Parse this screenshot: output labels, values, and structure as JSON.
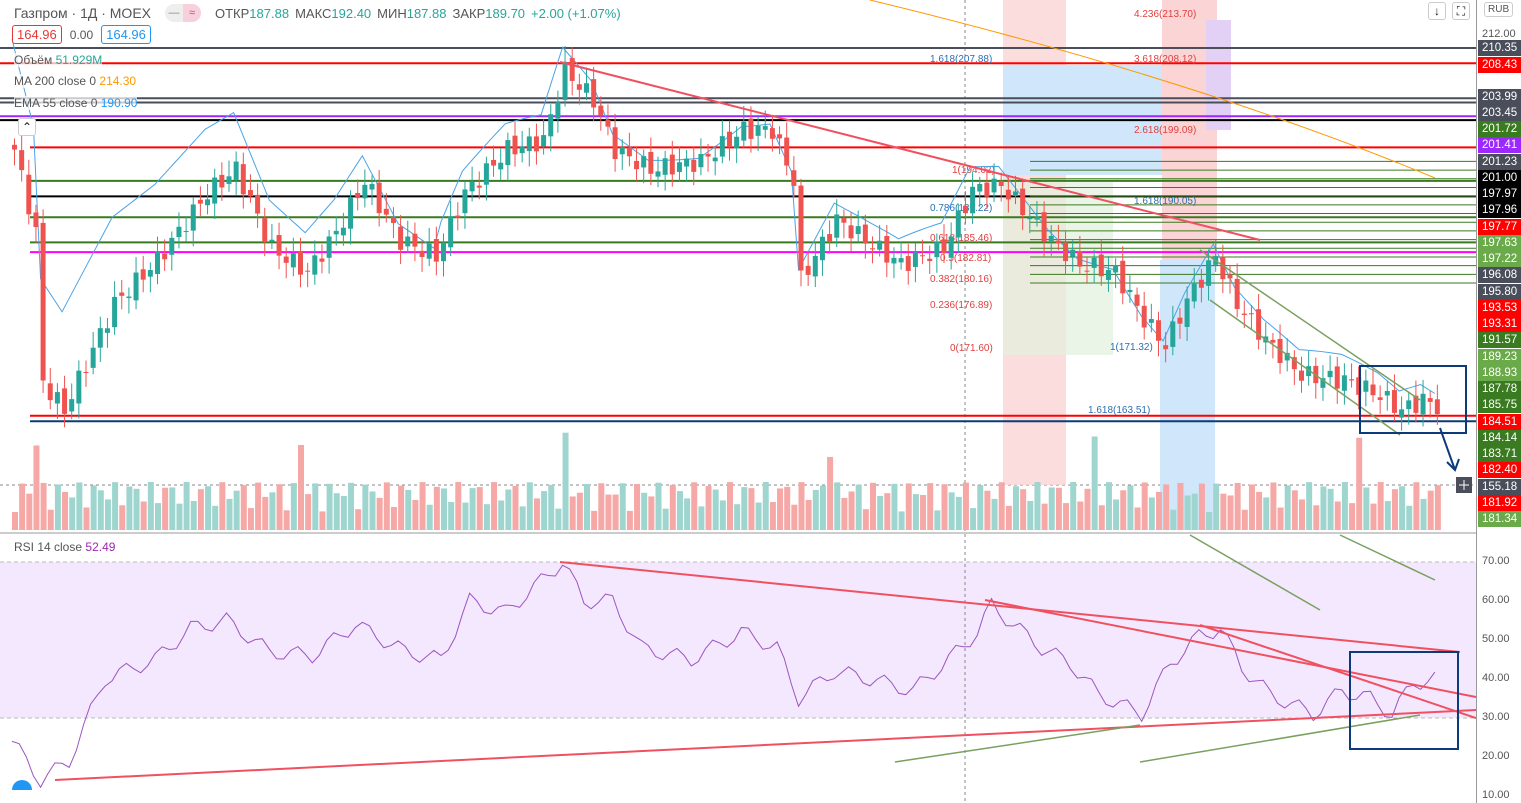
{
  "header": {
    "title": "Газпром · 1Д · MOEX",
    "open_label": "ОТКР",
    "open": "187.88",
    "high_label": "МАКС",
    "high": "192.40",
    "low_label": "МИН",
    "low": "187.88",
    "close_label": "ЗАКР",
    "close": "189.70",
    "change": "+2.00 (+1.07%)",
    "sell": "164.96",
    "spread": "0.00",
    "buy": "164.96"
  },
  "indicators": {
    "volume_label": "Объём",
    "volume": "51.929M",
    "ma_label": "MA 200 close 0",
    "ma": "214.30",
    "ema_label": "EMA 55 close 0",
    "ema": "190.90",
    "rsi_label": "RSI 14 close",
    "rsi": "52.49"
  },
  "axis": {
    "currency": "RUB",
    "top": "212.00",
    "labels": [
      {
        "v": "210.35",
        "c": "#4a4e5a"
      },
      {
        "v": "208.43",
        "c": "#ff0000"
      },
      {
        "v": "203.99",
        "c": "#4a4e5a"
      },
      {
        "v": "203.45",
        "c": "#4a4e5a"
      },
      {
        "v": "201.72",
        "c": "#3a7a20"
      },
      {
        "v": "201.41",
        "c": "#9c27ff"
      },
      {
        "v": "201.23",
        "c": "#4a4e5a"
      },
      {
        "v": "201.00",
        "c": "#000000"
      },
      {
        "v": "197.97",
        "c": "#000000"
      },
      {
        "v": "197.96",
        "c": "#000000"
      },
      {
        "v": "197.77",
        "c": "#ff0000"
      },
      {
        "v": "197.63",
        "c": "#6aaa4a"
      },
      {
        "v": "197.22",
        "c": "#6aaa4a"
      },
      {
        "v": "196.08",
        "c": "#4a4e5a"
      },
      {
        "v": "195.80",
        "c": "#4a4e5a"
      },
      {
        "v": "193.53",
        "c": "#ff0000"
      },
      {
        "v": "193.31",
        "c": "#ff0000"
      },
      {
        "v": "191.57",
        "c": "#3a7a20"
      },
      {
        "v": "189.23",
        "c": "#6aaa4a"
      },
      {
        "v": "188.93",
        "c": "#6aaa4a"
      },
      {
        "v": "187.78",
        "c": "#3a7a20"
      },
      {
        "v": "185.75",
        "c": "#3a7a20"
      },
      {
        "v": "184.51",
        "c": "#ff0000"
      },
      {
        "v": "184.14",
        "c": "#3a7a20"
      },
      {
        "v": "183.71",
        "c": "#3a7a20"
      },
      {
        "v": "182.40",
        "c": "#ff0000"
      },
      {
        "v": "155.18",
        "c": "#4a4e5a"
      },
      {
        "v": "181.92",
        "c": "#ff0000"
      },
      {
        "v": "181.34",
        "c": "#6aaa4a"
      }
    ],
    "rsi_ticks": [
      "70.00",
      "60.00",
      "50.00",
      "40.00",
      "30.00",
      "20.00",
      "10.00"
    ]
  },
  "chart_data": {
    "type": "candlestick",
    "title": "Газпром · 1Д · MOEX",
    "price_range": [
      162,
      212
    ],
    "close_keypoints": [
      [
        0,
        197.5
      ],
      [
        3,
        187
      ],
      [
        4,
        168
      ],
      [
        7,
        164.5
      ],
      [
        14,
        178
      ],
      [
        20,
        183.5
      ],
      [
        27,
        192
      ],
      [
        31,
        195
      ],
      [
        36,
        185
      ],
      [
        41,
        182
      ],
      [
        45,
        187
      ],
      [
        49,
        193.5
      ],
      [
        54,
        186
      ],
      [
        59,
        184
      ],
      [
        63,
        192
      ],
      [
        69,
        197.5
      ],
      [
        74,
        198.7
      ],
      [
        77,
        207.5
      ],
      [
        81,
        203.8
      ],
      [
        84,
        197.5
      ],
      [
        89,
        195
      ],
      [
        96,
        196
      ],
      [
        102,
        200
      ],
      [
        106,
        200
      ],
      [
        109,
        193.6
      ],
      [
        110,
        181
      ],
      [
        115,
        188.6
      ],
      [
        120,
        185.4
      ],
      [
        124,
        183
      ],
      [
        130,
        185
      ],
      [
        134,
        192.4
      ],
      [
        138,
        193
      ],
      [
        141,
        190
      ],
      [
        145,
        186
      ],
      [
        149,
        183
      ],
      [
        154,
        182
      ],
      [
        158,
        176
      ],
      [
        161,
        172.7
      ],
      [
        164,
        178.4
      ],
      [
        168,
        184
      ],
      [
        171,
        178
      ],
      [
        175,
        173.4
      ],
      [
        180,
        169
      ],
      [
        186,
        168.3
      ],
      [
        191,
        166.4
      ],
      [
        194,
        164.5
      ],
      [
        197,
        165.8
      ],
      [
        199,
        165
      ]
    ],
    "rsi_keypoints": [
      [
        0,
        24
      ],
      [
        4,
        14
      ],
      [
        8,
        19
      ],
      [
        13,
        40
      ],
      [
        20,
        45
      ],
      [
        25,
        53
      ],
      [
        30,
        55
      ],
      [
        36,
        47
      ],
      [
        42,
        46
      ],
      [
        48,
        54
      ],
      [
        55,
        47
      ],
      [
        60,
        45
      ],
      [
        64,
        60
      ],
      [
        69,
        57
      ],
      [
        77,
        70
      ],
      [
        80,
        60
      ],
      [
        84,
        60
      ],
      [
        88,
        48
      ],
      [
        95,
        45
      ],
      [
        102,
        52
      ],
      [
        107,
        48
      ],
      [
        110,
        35
      ],
      [
        115,
        42
      ],
      [
        120,
        40
      ],
      [
        126,
        37
      ],
      [
        131,
        45
      ],
      [
        135,
        52
      ],
      [
        137,
        59
      ],
      [
        140,
        54
      ],
      [
        144,
        48
      ],
      [
        148,
        44
      ],
      [
        152,
        36
      ],
      [
        158,
        31
      ],
      [
        162,
        44
      ],
      [
        166,
        51
      ],
      [
        169,
        53
      ],
      [
        172,
        43
      ],
      [
        176,
        36
      ],
      [
        182,
        31
      ],
      [
        186,
        37
      ],
      [
        190,
        35
      ],
      [
        193,
        31
      ],
      [
        196,
        39
      ],
      [
        199,
        40
      ]
    ],
    "levels": [
      {
        "p": 210.35,
        "c": "#4a4e5a"
      },
      {
        "p": 208.43,
        "c": "#ff0000"
      },
      {
        "p": 203.99,
        "c": "#4a4e5a"
      },
      {
        "p": 203.45,
        "c": "#4a4e5a"
      },
      {
        "p": 201.72,
        "c": "#9c27ff"
      },
      {
        "p": 201.23,
        "c": "#000"
      },
      {
        "p": 197.77,
        "c": "#ff0000"
      },
      {
        "p": 193.53,
        "c": "#3a7a20"
      },
      {
        "p": 191.57,
        "c": "#000"
      },
      {
        "p": 188.93,
        "c": "#3a7a20"
      },
      {
        "p": 185.75,
        "c": "#3a7a20"
      },
      {
        "p": 184.51,
        "c": "#ff00ff"
      },
      {
        "p": 163.8,
        "c": "#ff0000"
      },
      {
        "p": 163.1,
        "c": "#0d3b7a"
      }
    ],
    "fib_labels": [
      "1.618(207.88)",
      "4.236(213.70)",
      "3.618(208.12)",
      "2.618(199.09)",
      "1(194.02)",
      "0.786(189.22)",
      "0.618(185.46)",
      "0.5(182.81)",
      "0.382(180.16)",
      "0.236(176.89)",
      "0(171.60)",
      "1.618(190.05)",
      "1(171.32)",
      "1.618(163.51)"
    ],
    "rsi_bands": [
      30,
      70
    ]
  }
}
